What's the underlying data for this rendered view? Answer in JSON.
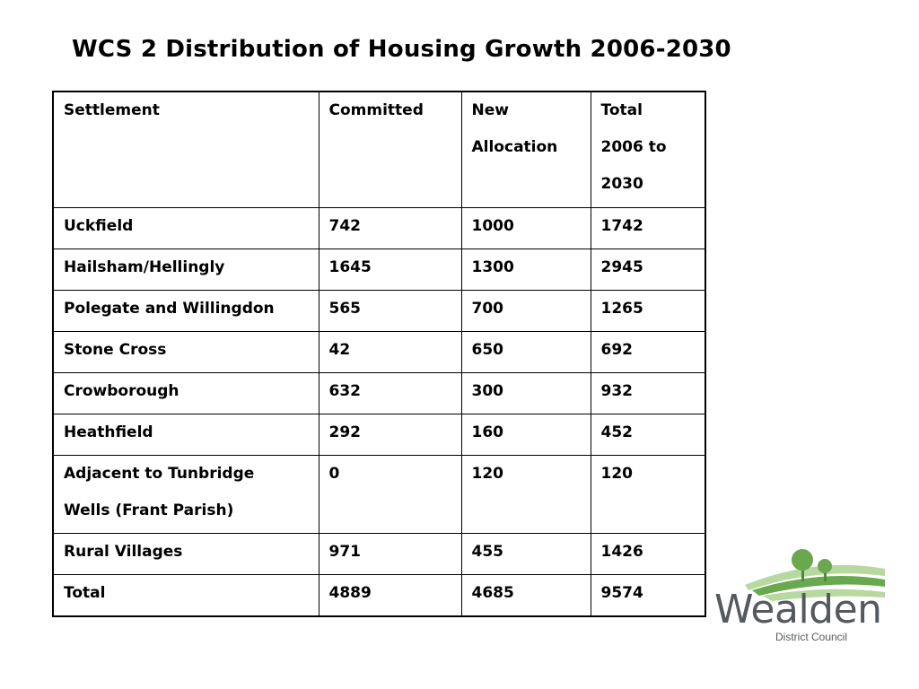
{
  "title": "WCS 2 Distribution of Housing Growth 2006-2030",
  "table": {
    "headers": [
      "Settlement",
      "Committed",
      "New Allocation",
      "Total 2006 to 2030"
    ],
    "rows": [
      [
        "Uckfield",
        "742",
        "1000",
        "1742"
      ],
      [
        "Hailsham/Hellingly",
        "1645",
        "1300",
        "2945"
      ],
      [
        "Polegate and Willingdon",
        "565",
        "700",
        "1265"
      ],
      [
        "Stone Cross",
        "42",
        "650",
        "692"
      ],
      [
        "Crowborough",
        "632",
        "300",
        "932"
      ],
      [
        "Heathfield",
        "292",
        "160",
        "452"
      ],
      [
        "Adjacent to Tunbridge Wells (Frant Parish)",
        "0",
        "120",
        "120"
      ],
      [
        "Rural Villages",
        "971",
        "455",
        "1426"
      ],
      [
        "Total",
        "4889",
        "4685",
        "9574"
      ]
    ]
  },
  "logo": {
    "name": "Wealden",
    "subtitle": "District Council",
    "icon": "trees-on-hills-icon",
    "colors": {
      "green": "#6aa84f",
      "light_green": "#b7d9a0",
      "text": "#555a5e"
    }
  }
}
